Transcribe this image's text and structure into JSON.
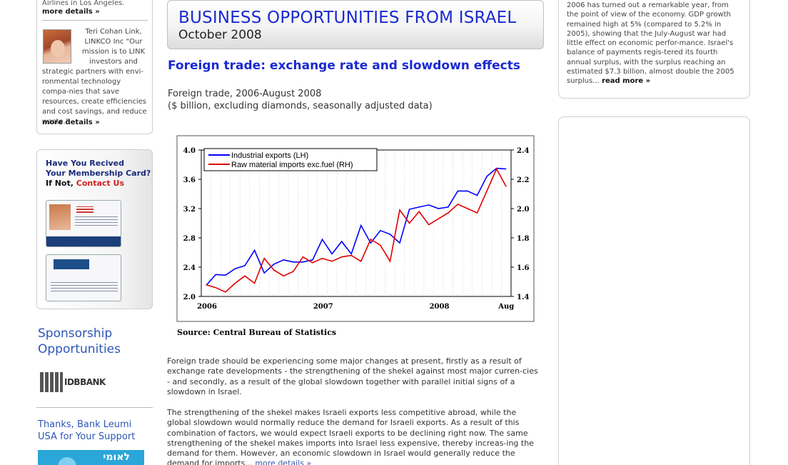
{
  "left": {
    "top_partial": "Airlines in Los Angeles.",
    "more_details_1": "more details »",
    "person_quote_right": "Teri Cohan Link, LINKCO Inc \"Our mission is to LINK investors and",
    "person_quote_full": "strategic partners with envi-ronmental technology compa-nies that save resources, create efficiencies and cost savings, and reduce waste.\"",
    "more_details_2": "more details »",
    "card_question_1": "Have You Recived",
    "card_question_2": "Your Membership Card?",
    "card_if_not": "If Not,",
    "card_contact": "Contact Us",
    "sponsor_title_1": "Sponsorship",
    "sponsor_title_2": "Opportunities",
    "idb_logo_text": "IDBBANK",
    "thanks_1": "Thanks, Bank Leumi",
    "thanks_2": "USA for Your Support",
    "leumi_text": "לאומי"
  },
  "header": {
    "title": "BUSINESS OPPORTUNITIES FROM ISRAEL",
    "date": "October 2008"
  },
  "article": {
    "title": "Foreign trade: exchange rate and slowdown effects",
    "caption_1": "Foreign trade, 2006-August 2008",
    "caption_2": "($ billion, excluding diamonds, seasonally adjusted data)",
    "para_1": "Foreign trade should be experiencing some major changes at present, firstly as a result of exchange rate developments - the strengthening of the shekel against most major curren-cies - and secondly, as a result of the global slowdown together with parallel initial signs of a slowdown in Israel.",
    "para_2": "The strengthening of the shekel makes Israeli exports less competitive abroad, while the global slowdown would normally reduce the demand for Israeli exports. As a result of this combination of factors, we would expect Israeli exports to be declining right now. The same strengthening of the shekel makes imports into Israel less expensive, thereby increas-ing the demand for them. However, an economic slowdown in Israel would generally reduce the demand for imports...",
    "para_2_more": "more details »"
  },
  "right": {
    "text": "2006 has turned out a remarkable year, from the point of view of the economy. GDP growth remained high at 5% (compared to 5.2% in 2005), showing that the July-August war had little effect on economic perfor-mance. Israel's balance of payments regis-tered its fourth annual surplus, with the surplus reaching an estimated $7.3 billion, almost double the 2005 surplus...",
    "read_more": "read more »"
  },
  "chart_data": {
    "type": "line",
    "source": "Source: Central Bureau of Statistics",
    "x_tick_labels": [
      "2006",
      "2007",
      "2008",
      "Aug"
    ],
    "y_left_ticks": [
      "4.0",
      "3.6",
      "3.2",
      "2.8",
      "2.4",
      "2.0"
    ],
    "y_right_ticks": [
      "2.4",
      "2.2",
      "2.0",
      "1.8",
      "1.6",
      "1.4"
    ],
    "ylim_left": [
      2.0,
      4.0
    ],
    "ylim_right": [
      1.4,
      2.4
    ],
    "grid": true,
    "legend_position": "top-left",
    "series": [
      {
        "name": "Industrial exports (LH)",
        "axis": "left",
        "color": "#0000ff",
        "values": [
          2.15,
          2.3,
          2.29,
          2.38,
          2.42,
          2.63,
          2.32,
          2.44,
          2.5,
          2.47,
          2.47,
          2.5,
          2.78,
          2.58,
          2.75,
          2.58,
          2.97,
          2.73,
          2.9,
          2.85,
          2.73,
          3.19,
          3.22,
          3.25,
          3.2,
          3.22,
          3.44,
          3.44,
          3.38,
          3.64,
          3.75,
          3.74
        ]
      },
      {
        "name": "Raw material imports exc.fuel (RH)",
        "axis": "right",
        "color": "#e00000",
        "values": [
          1.48,
          1.46,
          1.43,
          1.49,
          1.54,
          1.49,
          1.66,
          1.58,
          1.54,
          1.57,
          1.67,
          1.63,
          1.66,
          1.64,
          1.67,
          1.68,
          1.64,
          1.79,
          1.75,
          1.64,
          1.99,
          1.9,
          1.98,
          1.89,
          1.93,
          1.97,
          2.03,
          2.0,
          1.97,
          2.12,
          2.27,
          2.15
        ]
      }
    ]
  }
}
